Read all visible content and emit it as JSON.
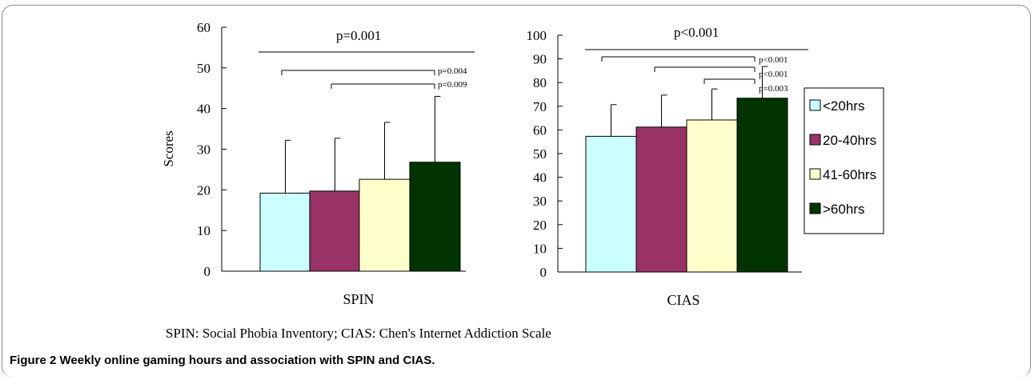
{
  "chart_data": [
    {
      "type": "bar",
      "xlabel": "SPIN",
      "ylabel": "Scores",
      "ylim": [
        0,
        60
      ],
      "yticks": [
        "0",
        "10",
        "20",
        "30",
        "40",
        "50",
        "60"
      ],
      "categories": [
        "<20hrs",
        "20-40hrs",
        "41-60hrs",
        ">60hrs"
      ],
      "values": [
        19.2,
        19.7,
        22.6,
        26.8
      ],
      "error_upper": [
        32.2,
        32.7,
        36.6,
        43.0
      ],
      "comparisons": [
        {
          "label": "p=0.001",
          "from": 0,
          "to": 3
        },
        {
          "label": "p=0.004",
          "from": 0,
          "to": 3
        },
        {
          "label": "p=0.009",
          "from": 1,
          "to": 3
        }
      ]
    },
    {
      "type": "bar",
      "xlabel": "CIAS",
      "ylabel": "",
      "ylim": [
        0,
        100
      ],
      "yticks": [
        "0",
        "10",
        "20",
        "30",
        "40",
        "50",
        "60",
        "70",
        "80",
        "90",
        "100"
      ],
      "categories": [
        "<20hrs",
        "20-40hrs",
        "41-60hrs",
        ">60hrs"
      ],
      "values": [
        57.3,
        61.2,
        64.2,
        73.4
      ],
      "error_upper": [
        70.7,
        74.7,
        77.3,
        86.8
      ],
      "comparisons": [
        {
          "label": "p<0.001",
          "from": 0,
          "to": 3
        },
        {
          "label": "p<0.001",
          "from": 0,
          "to": 3
        },
        {
          "label": "p<0.001",
          "from": 1,
          "to": 3
        },
        {
          "label": "p=0.003",
          "from": 2,
          "to": 3
        }
      ]
    }
  ],
  "legend": {
    "placement": "right",
    "items": [
      {
        "label": "<20hrs",
        "color": "#ccffff"
      },
      {
        "label": "20-40hrs",
        "color": "#993366"
      },
      {
        "label": "41-60hrs",
        "color": "#ffffcc"
      },
      {
        "label": ">60hrs",
        "color": "#003300"
      }
    ]
  },
  "footnote": "SPIN: Social Phobia Inventory; CIAS: Chen's Internet Addiction Scale",
  "caption": {
    "label": "Figure 2",
    "title": "Weekly online gaming hours and association with SPIN and CIAS."
  }
}
